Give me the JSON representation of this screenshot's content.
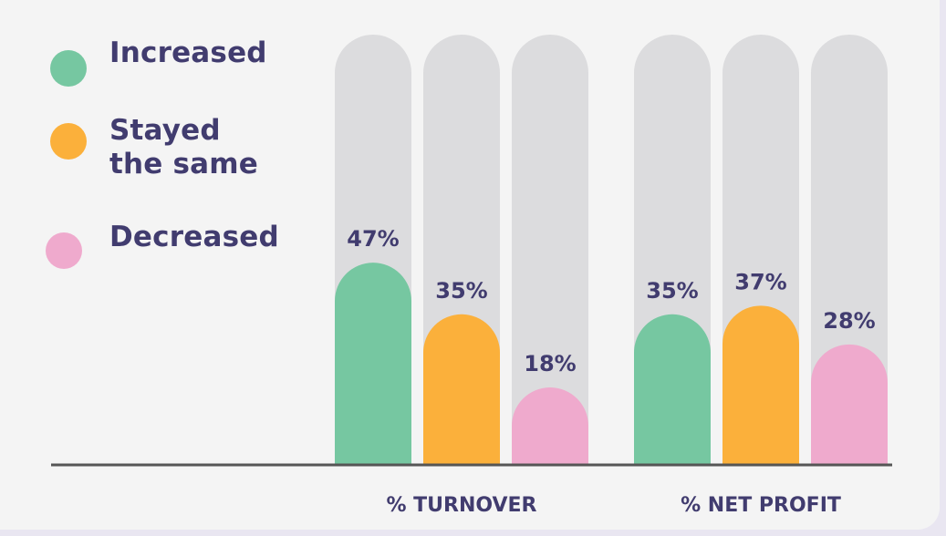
{
  "chart_data": {
    "type": "bar",
    "categories": [
      "% TURNOVER",
      "% NET PROFIT"
    ],
    "series": [
      {
        "name": "Increased",
        "values": [
          47,
          35
        ],
        "color": "#76c7a1"
      },
      {
        "name": "Stayed the same",
        "values": [
          35,
          37
        ],
        "color": "#fbb03b"
      },
      {
        "name": "Decreased",
        "values": [
          18,
          28
        ],
        "color": "#efaacd"
      }
    ],
    "data_labels": [
      [
        "47%",
        "35%"
      ],
      [
        "35%",
        "37%"
      ],
      [
        "18%",
        "28%"
      ]
    ],
    "ylim": [
      0,
      100
    ],
    "legend_position": "left",
    "track_color": "#dcdcde",
    "axis_color": "#555555",
    "text_color": "#413c6f"
  }
}
